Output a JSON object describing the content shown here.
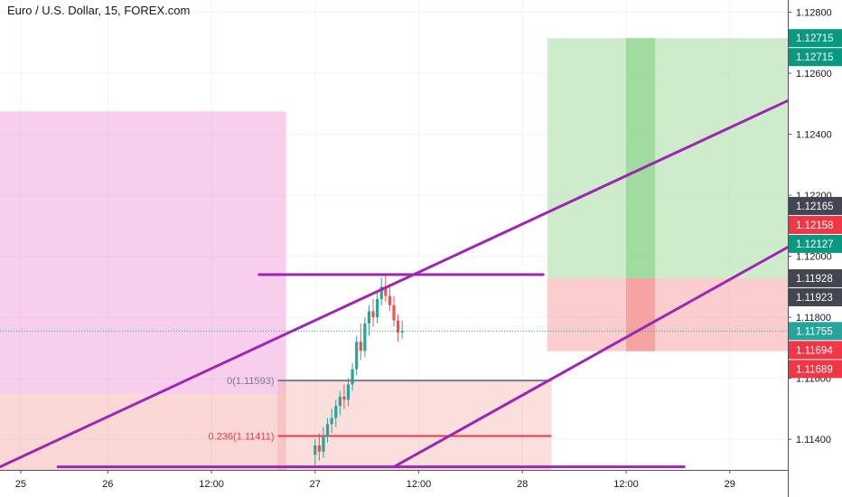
{
  "title": "Euro / U.S. Dollar, 15, FOREX.com",
  "chart_data": {
    "type": "candlestick",
    "symbol": "Euro / U.S. Dollar",
    "interval": "15",
    "source": "FOREX.com",
    "y_axis": {
      "ylim": [
        1.113,
        1.1284
      ],
      "ticks": [
        {
          "value": 1.128,
          "label": "1.12800"
        },
        {
          "value": 1.126,
          "label": "1.12600"
        },
        {
          "value": 1.124,
          "label": "1.12400"
        },
        {
          "value": 1.122,
          "label": "1.12200"
        },
        {
          "value": 1.12,
          "label": "1.12000"
        },
        {
          "value": 1.118,
          "label": "1.11800"
        },
        {
          "value": 1.116,
          "label": "1.11600"
        },
        {
          "value": 1.114,
          "label": "1.11400"
        }
      ]
    },
    "x_axis": {
      "xlim": [
        -0.1,
        3.7
      ],
      "ticks": [
        {
          "value": 0,
          "label": "25"
        },
        {
          "value": 0.42,
          "label": "26"
        },
        {
          "value": 0.92,
          "label": "12:00"
        },
        {
          "value": 1.42,
          "label": "27"
        },
        {
          "value": 1.92,
          "label": "12:00"
        },
        {
          "value": 2.42,
          "label": "28"
        },
        {
          "value": 2.92,
          "label": "12:00"
        },
        {
          "value": 3.42,
          "label": "29"
        }
      ]
    },
    "grid": true,
    "price_badges": [
      {
        "value": 1.12715,
        "label": "1.12715",
        "color": "#089981"
      },
      {
        "value": 1.12715,
        "label": "1.12715",
        "color": "#089981"
      },
      {
        "value": 1.12165,
        "label": "1.12165",
        "color": "#434651"
      },
      {
        "value": 1.12158,
        "label": "1.12158",
        "color": "#f23645"
      },
      {
        "value": 1.12127,
        "label": "1.12127",
        "color": "#089981"
      },
      {
        "value": 1.11928,
        "label": "1.11928",
        "color": "#434651"
      },
      {
        "value": 1.11923,
        "label": "1.11923",
        "color": "#434651"
      },
      {
        "value": 1.11755,
        "label": "1.11755",
        "color": "#26a69a"
      },
      {
        "value": 1.11694,
        "label": "1.11694",
        "color": "#f23645"
      },
      {
        "value": 1.11689,
        "label": "1.11689",
        "color": "#f23645"
      }
    ],
    "last_price": 1.11755,
    "fib_levels": [
      {
        "ratio": "0",
        "label": "0(1.11593)",
        "value": 1.11593,
        "color": "#787b86"
      },
      {
        "ratio": "0.236",
        "label": "0.236(1.11411)",
        "value": 1.11411,
        "color": "#f23645"
      }
    ],
    "rectangles": [
      {
        "x1": -0.1,
        "x2": 1.28,
        "y1": 1.11548,
        "y2": 1.12475,
        "color": "#f0a6dc"
      },
      {
        "x1": -0.1,
        "x2": 1.28,
        "y1": 1.113,
        "y2": 1.11548,
        "color": "#f3b6b1"
      },
      {
        "x1": 2.54,
        "x2": 3.7,
        "y1": 1.11928,
        "y2": 1.12715,
        "color": "#a5dca2"
      },
      {
        "x1": 2.54,
        "x2": 3.7,
        "y1": 1.11689,
        "y2": 1.11928,
        "color": "#f8a5a5"
      },
      {
        "x1": 2.92,
        "x2": 3.06,
        "y1": 1.11928,
        "y2": 1.12715,
        "color": "#7ccd7c"
      },
      {
        "x1": 2.92,
        "x2": 3.06,
        "y1": 1.11689,
        "y2": 1.11928,
        "color": "#f07f7f"
      }
    ],
    "trend_lines": [
      {
        "x1": -0.1,
        "y1": 1.1131,
        "x2": 3.7,
        "y2": 1.1251
      },
      {
        "x1": 1.8,
        "y1": 1.1131,
        "x2": 3.7,
        "y2": 1.1203
      },
      {
        "x1": 1.15,
        "y1": 1.1194,
        "x2": 2.52,
        "y2": 1.1194
      },
      {
        "x1": 0.18,
        "y1": 1.1131,
        "x2": 3.2,
        "y2": 1.1131
      }
    ],
    "candles": [
      {
        "x": 1.42,
        "o": 1.1135,
        "h": 1.114,
        "l": 1.1131,
        "c": 1.1138
      },
      {
        "x": 1.44,
        "o": 1.1138,
        "h": 1.1142,
        "l": 1.1133,
        "c": 1.1136
      },
      {
        "x": 1.46,
        "o": 1.1136,
        "h": 1.1144,
        "l": 1.1134,
        "c": 1.1141
      },
      {
        "x": 1.48,
        "o": 1.1141,
        "h": 1.1147,
        "l": 1.1139,
        "c": 1.1145
      },
      {
        "x": 1.5,
        "o": 1.1145,
        "h": 1.115,
        "l": 1.1142,
        "c": 1.1147
      },
      {
        "x": 1.52,
        "o": 1.1147,
        "h": 1.1153,
        "l": 1.1144,
        "c": 1.1151
      },
      {
        "x": 1.54,
        "o": 1.1151,
        "h": 1.1156,
        "l": 1.1148,
        "c": 1.1154
      },
      {
        "x": 1.56,
        "o": 1.1154,
        "h": 1.1158,
        "l": 1.115,
        "c": 1.1153
      },
      {
        "x": 1.58,
        "o": 1.1153,
        "h": 1.116,
        "l": 1.1151,
        "c": 1.1158
      },
      {
        "x": 1.6,
        "o": 1.1158,
        "h": 1.1165,
        "l": 1.1156,
        "c": 1.1163
      },
      {
        "x": 1.62,
        "o": 1.1163,
        "h": 1.1174,
        "l": 1.1161,
        "c": 1.1172
      },
      {
        "x": 1.64,
        "o": 1.1172,
        "h": 1.1178,
        "l": 1.1166,
        "c": 1.1169
      },
      {
        "x": 1.66,
        "o": 1.1169,
        "h": 1.118,
        "l": 1.1167,
        "c": 1.1178
      },
      {
        "x": 1.68,
        "o": 1.1178,
        "h": 1.1184,
        "l": 1.1174,
        "c": 1.1182
      },
      {
        "x": 1.7,
        "o": 1.1182,
        "h": 1.1186,
        "l": 1.1177,
        "c": 1.118
      },
      {
        "x": 1.72,
        "o": 1.118,
        "h": 1.1188,
        "l": 1.1178,
        "c": 1.1186
      },
      {
        "x": 1.74,
        "o": 1.1186,
        "h": 1.1193,
        "l": 1.1184,
        "c": 1.119
      },
      {
        "x": 1.76,
        "o": 1.119,
        "h": 1.1194,
        "l": 1.1185,
        "c": 1.1187
      },
      {
        "x": 1.78,
        "o": 1.1187,
        "h": 1.1191,
        "l": 1.1182,
        "c": 1.1184
      },
      {
        "x": 1.8,
        "o": 1.1184,
        "h": 1.1187,
        "l": 1.1177,
        "c": 1.1179
      },
      {
        "x": 1.82,
        "o": 1.1179,
        "h": 1.1181,
        "l": 1.1172,
        "c": 1.1175
      },
      {
        "x": 1.84,
        "o": 1.1175,
        "h": 1.1179,
        "l": 1.1173,
        "c": 1.11755
      }
    ]
  }
}
